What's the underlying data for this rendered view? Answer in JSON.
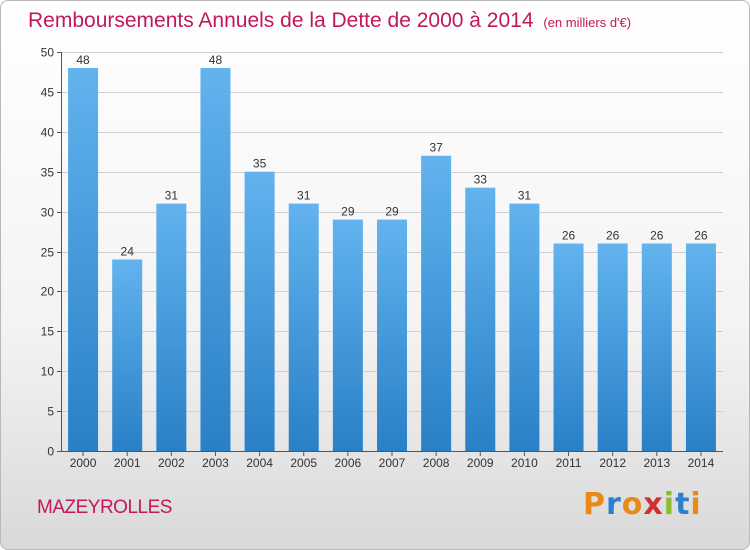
{
  "header": {
    "title": "Remboursements Annuels de la Dette de 2000 à 2014",
    "subtitle": "(en milliers d'€)"
  },
  "footer": {
    "city": "MAZEYROLLES",
    "logo_text": "Proxiti"
  },
  "colors": {
    "title": "#c2185b",
    "bar_top": "#62b3ee",
    "bar_bottom": "#2a80c6",
    "logo_letters": [
      "#e8891a",
      "#2f7fd0",
      "#e8891a",
      "#d22f2f",
      "#8dbb2d",
      "#2f7fd0",
      "#e8891a"
    ]
  },
  "chart_data": {
    "type": "bar",
    "title": "Remboursements Annuels de la Dette de 2000 à 2014",
    "subtitle": "(en milliers d'€)",
    "categories": [
      "2000",
      "2001",
      "2002",
      "2003",
      "2004",
      "2005",
      "2006",
      "2007",
      "2008",
      "2009",
      "2010",
      "2011",
      "2012",
      "2013",
      "2014"
    ],
    "values": [
      48,
      24,
      31,
      48,
      35,
      31,
      29,
      29,
      37,
      33,
      31,
      26,
      26,
      26,
      26
    ],
    "ylim": [
      0,
      50
    ],
    "yticks": [
      0,
      5,
      10,
      15,
      20,
      25,
      30,
      35,
      40,
      45,
      50
    ],
    "grid": true,
    "data_labels": true,
    "xlabel": "",
    "ylabel": ""
  }
}
